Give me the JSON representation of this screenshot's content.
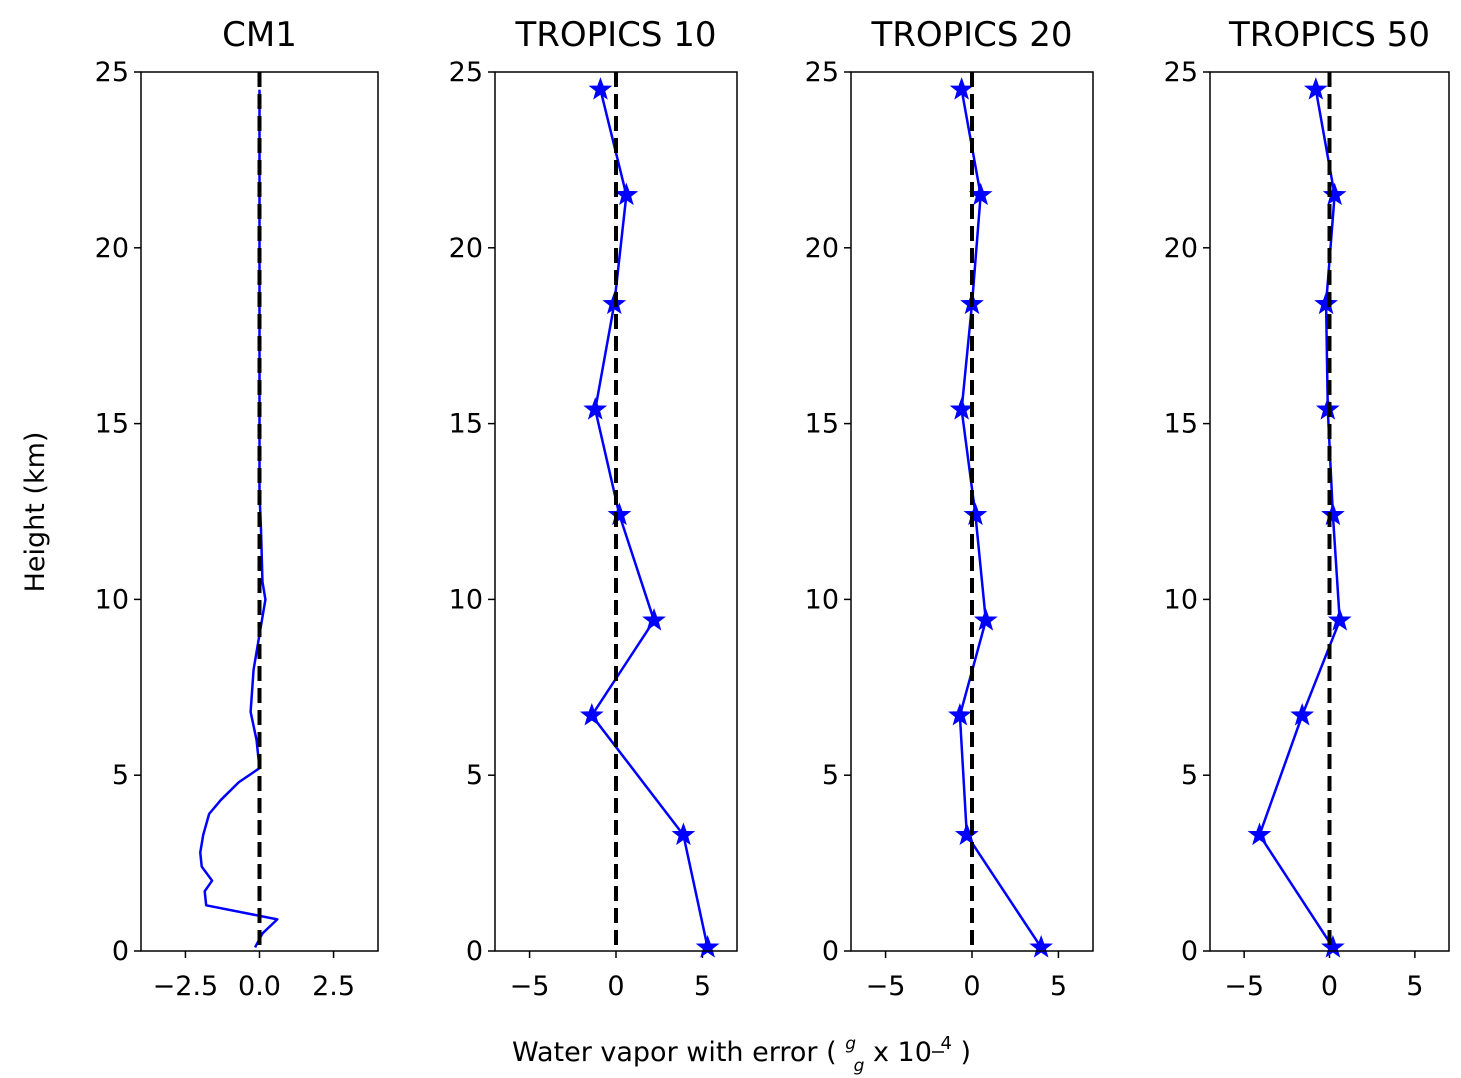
{
  "figure": {
    "ylabel": "Height (km)",
    "xlabel_main": "Water vapor with error (",
    "xlabel_frac_num": "g",
    "xlabel_frac_den": "g",
    "xlabel_times": " x 10",
    "xlabel_exp": "4",
    "xlabel_close": ")"
  },
  "chart_data": [
    {
      "type": "line",
      "title": "CM1",
      "xlim": [
        -4.0,
        4.0
      ],
      "ylim": [
        0,
        25
      ],
      "xticks": [
        -2.5,
        0.0,
        2.5
      ],
      "xtick_labels": [
        "−2.5",
        "0.0",
        "2.5"
      ],
      "yticks": [
        0,
        5,
        10,
        15,
        20,
        25
      ],
      "ytick_labels": [
        "0",
        "5",
        "10",
        "15",
        "20",
        "25"
      ],
      "series": [
        {
          "color": "#0000ff",
          "marker": "none",
          "x": [
            -0.15,
            0.1,
            0.6,
            -1.8,
            -1.85,
            -1.6,
            -1.95,
            -2.0,
            -1.9,
            -1.7,
            -1.3,
            -0.7,
            0.0,
            -0.1,
            -0.3,
            -0.2,
            0.0,
            0.2,
            0.1,
            0.05,
            0.0,
            0.0,
            0.0,
            0.0,
            0.0,
            0.0,
            0.0,
            0.0
          ],
          "y": [
            0.1,
            0.5,
            0.9,
            1.3,
            1.7,
            2.0,
            2.4,
            2.8,
            3.3,
            3.9,
            4.3,
            4.8,
            5.2,
            6.0,
            6.8,
            8.0,
            9.0,
            10.0,
            10.5,
            12.0,
            13.0,
            15.0,
            17.0,
            19.0,
            21.0,
            22.0,
            23.0,
            24.5
          ]
        }
      ],
      "reference_line": {
        "x": 0,
        "color": "#000000",
        "style": "dashed"
      }
    },
    {
      "type": "line",
      "title": "TROPICS 10",
      "xlim": [
        -7.0,
        7.0
      ],
      "ylim": [
        0,
        25
      ],
      "xticks": [
        -5,
        0,
        5
      ],
      "xtick_labels": [
        "−5",
        "0",
        "5"
      ],
      "yticks": [
        0,
        5,
        10,
        15,
        20,
        25
      ],
      "ytick_labels": [
        "0",
        "5",
        "10",
        "15",
        "20",
        "25"
      ],
      "series": [
        {
          "color": "#0000ff",
          "marker": "star",
          "x": [
            5.3,
            3.9,
            -1.4,
            2.2,
            0.2,
            -1.2,
            -0.1,
            0.6,
            -0.9
          ],
          "y": [
            0.1,
            3.3,
            6.7,
            9.4,
            12.4,
            15.4,
            18.4,
            21.5,
            24.5
          ]
        }
      ],
      "reference_line": {
        "x": 0,
        "color": "#000000",
        "style": "dashed"
      }
    },
    {
      "type": "line",
      "title": "TROPICS 20",
      "xlim": [
        -7.0,
        7.0
      ],
      "ylim": [
        0,
        25
      ],
      "xticks": [
        -5,
        0,
        5
      ],
      "xtick_labels": [
        "−5",
        "0",
        "5"
      ],
      "yticks": [
        0,
        5,
        10,
        15,
        20,
        25
      ],
      "ytick_labels": [
        "0",
        "5",
        "10",
        "15",
        "20",
        "25"
      ],
      "series": [
        {
          "color": "#0000ff",
          "marker": "star",
          "x": [
            4.0,
            -0.3,
            -0.7,
            0.8,
            0.2,
            -0.6,
            0.0,
            0.5,
            -0.6
          ],
          "y": [
            0.1,
            3.3,
            6.7,
            9.4,
            12.4,
            15.4,
            18.4,
            21.5,
            24.5
          ]
        }
      ],
      "reference_line": {
        "x": 0,
        "color": "#000000",
        "style": "dashed"
      }
    },
    {
      "type": "line",
      "title": "TROPICS 50",
      "xlim": [
        -7.0,
        7.0
      ],
      "ylim": [
        0,
        25
      ],
      "xticks": [
        -5,
        0,
        5
      ],
      "xtick_labels": [
        "−5",
        "0",
        "5"
      ],
      "yticks": [
        0,
        5,
        10,
        15,
        20,
        25
      ],
      "ytick_labels": [
        "0",
        "5",
        "10",
        "15",
        "20",
        "25"
      ],
      "series": [
        {
          "color": "#0000ff",
          "marker": "star",
          "x": [
            0.2,
            -4.1,
            -1.6,
            0.6,
            0.2,
            -0.1,
            -0.2,
            0.3,
            -0.8
          ],
          "y": [
            0.1,
            3.3,
            6.7,
            9.4,
            12.4,
            15.4,
            18.4,
            21.5,
            24.5
          ]
        }
      ],
      "reference_line": {
        "x": 0,
        "color": "#000000",
        "style": "dashed"
      }
    }
  ]
}
